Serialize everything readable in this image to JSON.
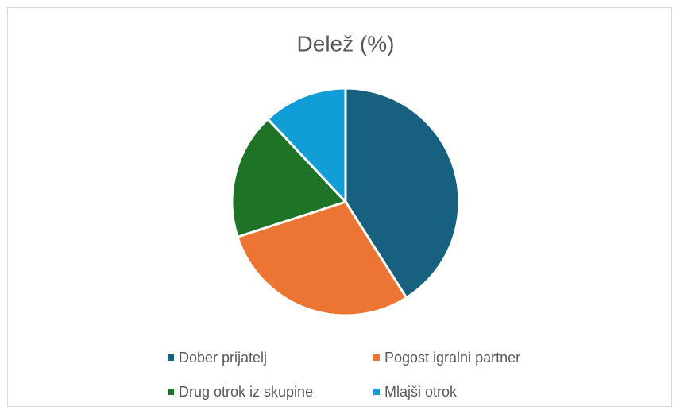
{
  "chart_data": {
    "type": "pie",
    "title": "Delež (%)",
    "categories": [
      "Dober prijatelj",
      "Pogost igralni partner",
      "Drug otrok iz skupine",
      "Mlajši otrok"
    ],
    "values": [
      41,
      29,
      18,
      12
    ],
    "colors": [
      "#18607f",
      "#ec7533",
      "#1e7327",
      "#119ed6"
    ],
    "legend": "bottom"
  }
}
